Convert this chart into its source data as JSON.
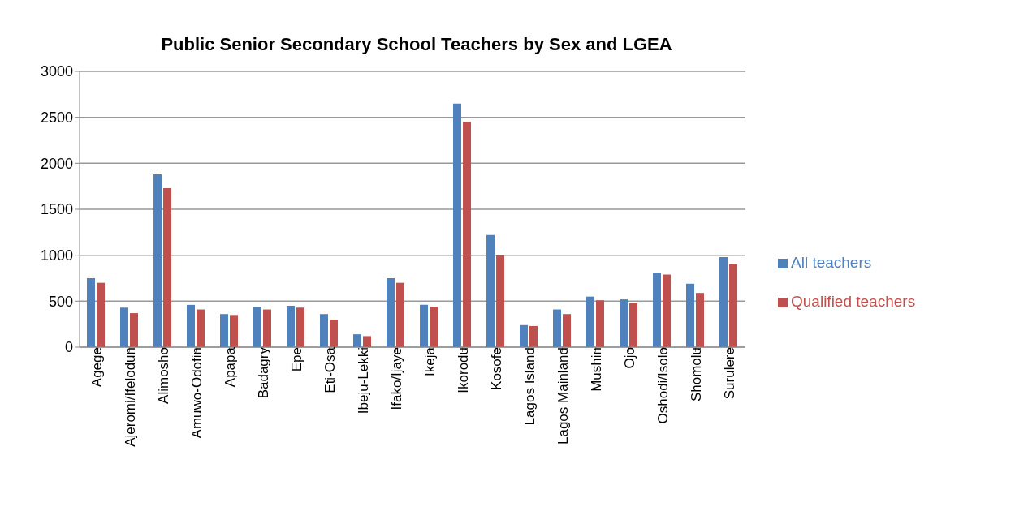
{
  "chart_data": {
    "type": "bar",
    "title": "Public Senior Secondary School Teachers by Sex and LGEA",
    "categories": [
      "Agege",
      "Ajeromi/Ifelodun",
      "Alimosho",
      "Amuwo-Odofin",
      "Apapa",
      "Badagry",
      "Epe",
      "Eti-Osa",
      "Ibeju-Lekki",
      "Ifako/Ijaye",
      "Ikeja",
      "Ikorodu",
      "Kosofe",
      "Lagos Island",
      "Lagos Mainland",
      "Mushin",
      "Ojo",
      "Oshodi/Isolo",
      "Shomolu",
      "Surulere"
    ],
    "series": [
      {
        "name": "All teachers",
        "color": "#4f81bd",
        "values": [
          750,
          430,
          1880,
          460,
          360,
          440,
          450,
          360,
          140,
          750,
          460,
          2650,
          1220,
          240,
          410,
          550,
          520,
          810,
          690,
          980
        ]
      },
      {
        "name": "Qualified teachers",
        "color": "#c0504d",
        "values": [
          700,
          370,
          1730,
          410,
          350,
          410,
          430,
          300,
          120,
          700,
          440,
          2450,
          1000,
          230,
          360,
          510,
          480,
          790,
          590,
          900
        ]
      }
    ],
    "ylim": [
      0,
      3000
    ],
    "yticks": [
      0,
      500,
      1000,
      1500,
      2000,
      2500,
      3000
    ],
    "grid": "y",
    "legend": "right"
  }
}
